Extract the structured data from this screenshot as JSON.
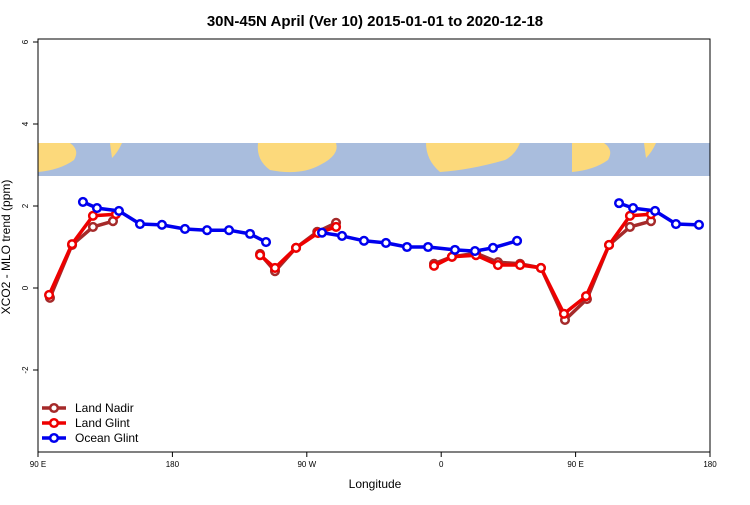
{
  "chart_data": {
    "type": "line",
    "title": "30N-45N April (Ver 10)   2015-01-01 to 2020-12-18",
    "x_label": "Longitude",
    "y_label": "XCO2 - MLO trend (ppm)",
    "xlim": [
      90,
      540
    ],
    "xticks": [
      {
        "value": 90,
        "label": "90 E"
      },
      180,
      {
        "value": 270,
        "label": "90 W"
      },
      {
        "value": 360,
        "label": "0"
      },
      {
        "value": 450,
        "label": "90 E"
      },
      {
        "value": 540,
        "label": "180"
      }
    ],
    "ylim": [
      -4,
      6
    ],
    "yticks": [
      -2,
      0,
      2,
      4,
      6
    ],
    "legend": "bottom-left",
    "series": [
      {
        "name": "Land Nadir",
        "color": "#a52a2a",
        "x": [
          98.0,
          112.8,
          126.8,
          140.2,
          null,
          238.7,
          248.7,
          262.8,
          277.0,
          289.6,
          null,
          355.2,
          367.2,
          383.3,
          398.0,
          412.8,
          426.8,
          442.9,
          457.6,
          472.4,
          486.4,
          500.5
        ],
        "values": [
          -0.24,
          1.05,
          1.49,
          1.63,
          null,
          0.83,
          0.41,
          0.98,
          1.37,
          1.59,
          null,
          0.59,
          0.76,
          0.85,
          0.63,
          0.59,
          0.49,
          -0.78,
          -0.27,
          1.05,
          1.49,
          1.63
        ]
      },
      {
        "name": "Land Glint",
        "color": "#ee0000",
        "x": [
          97.4,
          112.8,
          126.8,
          142.2,
          null,
          238.7,
          248.7,
          262.8,
          277.5,
          289.6,
          null,
          355.2,
          367.2,
          383.3,
          398.0,
          412.8,
          426.8,
          442.2,
          457.0,
          472.4,
          486.4,
          500.5
        ],
        "values": [
          -0.17,
          1.07,
          1.76,
          1.8,
          null,
          0.8,
          0.49,
          0.98,
          1.34,
          1.49,
          null,
          0.54,
          0.76,
          0.8,
          0.56,
          0.56,
          0.49,
          -0.63,
          -0.2,
          1.05,
          1.76,
          1.8
        ]
      },
      {
        "name": "Ocean Glint",
        "color": "#0000ee",
        "x": [
          120.1,
          129.5,
          144.2,
          158.3,
          173.0,
          188.4,
          203.2,
          217.9,
          232.0,
          242.7,
          null,
          280.2,
          293.6,
          308.3,
          323.0,
          337.1,
          351.2,
          369.2,
          382.6,
          394.7,
          410.8,
          null,
          479.1,
          488.5,
          503.2,
          517.2,
          532.6
        ],
        "values": [
          2.1,
          1.95,
          1.88,
          1.56,
          1.54,
          1.44,
          1.41,
          1.41,
          1.32,
          1.12,
          null,
          1.35,
          1.27,
          1.15,
          1.1,
          1.0,
          1.0,
          0.93,
          0.9,
          0.98,
          1.15,
          null,
          2.07,
          1.95,
          1.88,
          1.56,
          1.54
        ]
      }
    ]
  }
}
